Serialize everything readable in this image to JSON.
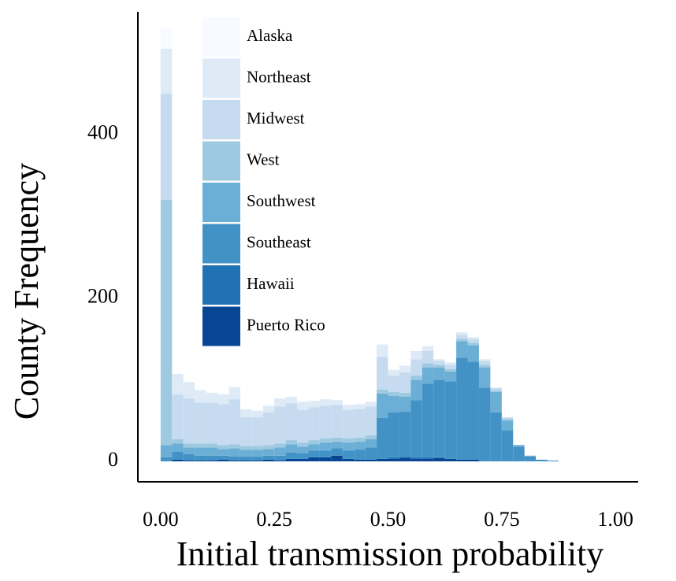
{
  "chart_data": {
    "type": "stacked-histogram",
    "xlabel": "Initial transmission probability",
    "ylabel": "County Frequency",
    "bins": [
      0,
      0.025,
      0.05,
      0.075,
      0.1,
      0.125,
      0.15,
      0.175,
      0.2,
      0.225,
      0.25,
      0.275,
      0.3,
      0.325,
      0.35,
      0.375,
      0.4,
      0.425,
      0.45,
      0.475,
      0.5,
      0.525,
      0.55,
      0.575,
      0.6,
      0.625,
      0.65,
      0.675,
      0.7,
      0.725,
      0.75,
      0.775,
      0.8,
      0.825,
      0.85,
      0.875,
      0.9,
      0.925
    ],
    "xlim": [
      -0.05,
      1.05
    ],
    "xticks": [
      {
        "value": 0,
        "label": "0.00"
      },
      {
        "value": 0.25,
        "label": "0.25"
      },
      {
        "value": 0.5,
        "label": "0.50"
      },
      {
        "value": 0.75,
        "label": "0.75"
      },
      {
        "value": 1,
        "label": "1.00"
      }
    ],
    "ylim": [
      -25,
      550
    ],
    "yticks": [
      0,
      200,
      400
    ],
    "series": [
      {
        "name": "Alaska",
        "color": "#f7fbff",
        "values": [
          25,
          0,
          0,
          0,
          0,
          0,
          0,
          0,
          0,
          0,
          0,
          0,
          0,
          0,
          0,
          0,
          0,
          0,
          0,
          0,
          0,
          0,
          0,
          0,
          0,
          0,
          0,
          0,
          0,
          0,
          0,
          0,
          0,
          0,
          0,
          0,
          0
        ]
      },
      {
        "name": "Northeast",
        "color": "#deebf7",
        "values": [
          55,
          25,
          20,
          15,
          12,
          12,
          15,
          10,
          8,
          8,
          10,
          8,
          10,
          8,
          8,
          6,
          6,
          6,
          6,
          15,
          7,
          8,
          10,
          6,
          2,
          3,
          3,
          2,
          2,
          0,
          0,
          0,
          0,
          0,
          0,
          0,
          0
        ]
      },
      {
        "name": "Midwest",
        "color": "#c6dbef",
        "values": [
          130,
          55,
          55,
          50,
          50,
          50,
          55,
          35,
          35,
          40,
          45,
          45,
          40,
          40,
          40,
          40,
          35,
          35,
          35,
          40,
          20,
          25,
          20,
          15,
          5,
          5,
          5,
          5,
          5,
          3,
          2,
          0,
          0,
          0,
          0,
          0,
          0
        ]
      },
      {
        "name": "West",
        "color": "#9ecae1",
        "values": [
          300,
          5,
          5,
          5,
          5,
          5,
          5,
          5,
          5,
          5,
          5,
          5,
          5,
          5,
          5,
          5,
          5,
          5,
          5,
          5,
          5,
          5,
          5,
          5,
          3,
          3,
          3,
          3,
          3,
          2,
          2,
          0,
          0,
          0,
          0,
          0,
          0
        ]
      },
      {
        "name": "Southwest",
        "color": "#6baed6",
        "values": [
          15,
          10,
          8,
          10,
          10,
          8,
          10,
          8,
          8,
          8,
          10,
          10,
          8,
          8,
          10,
          8,
          10,
          10,
          10,
          30,
          20,
          18,
          25,
          20,
          15,
          12,
          20,
          20,
          25,
          25,
          12,
          2,
          1,
          0,
          0,
          0,
          0
        ]
      },
      {
        "name": "Southeast",
        "color": "#4292c6",
        "values": [
          5,
          10,
          8,
          6,
          6,
          5,
          5,
          5,
          5,
          5,
          6,
          8,
          7,
          8,
          8,
          9,
          10,
          12,
          15,
          50,
          55,
          55,
          70,
          90,
          95,
          95,
          125,
          120,
          90,
          60,
          38,
          18,
          6,
          2,
          1,
          0,
          0
        ]
      },
      {
        "name": "Hawaii",
        "color": "#2171b5",
        "values": [
          0,
          0,
          0,
          0,
          0,
          0,
          0,
          0,
          0,
          0,
          0,
          0,
          0,
          0,
          0,
          0,
          0,
          0,
          0,
          0,
          2,
          2,
          2,
          2,
          1,
          0,
          0,
          0,
          0,
          0,
          0,
          0,
          0,
          0,
          0,
          0,
          0
        ]
      },
      {
        "name": "Puerto Rico",
        "color": "#084594",
        "values": [
          0,
          2,
          1,
          1,
          1,
          2,
          1,
          1,
          1,
          2,
          1,
          3,
          3,
          5,
          5,
          7,
          3,
          2,
          2,
          3,
          3,
          4,
          3,
          3,
          4,
          3,
          2,
          2,
          0,
          0,
          0,
          0,
          0,
          0,
          0,
          0,
          0
        ]
      }
    ]
  }
}
